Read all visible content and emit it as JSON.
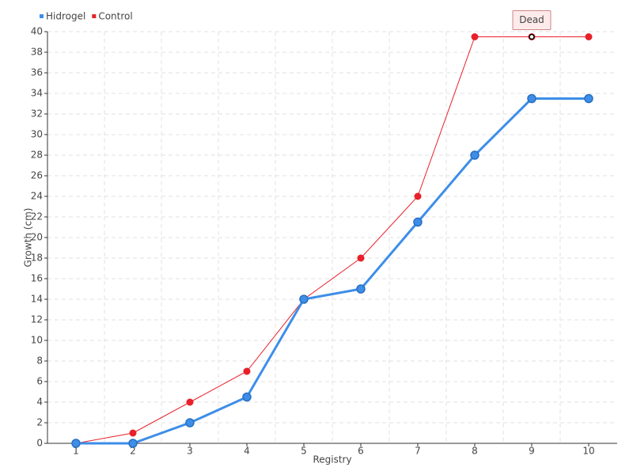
{
  "chart_data": {
    "type": "line",
    "x_label": "Registry",
    "y_label": "Growth (cm)",
    "categories": [
      "1",
      "2",
      "3",
      "4",
      "5",
      "6",
      "7",
      "8",
      "9",
      "10"
    ],
    "series": [
      {
        "name": "Hidrogel",
        "color": "#3d8ee8",
        "values": [
          0,
          0,
          2,
          4.5,
          14,
          15,
          21.5,
          28,
          33.5,
          33.5
        ]
      },
      {
        "name": "Control",
        "color": "#e8202a",
        "values": [
          0,
          1,
          4,
          7,
          14,
          18,
          24,
          39.5,
          39.5,
          39.5
        ]
      }
    ],
    "annotations": [
      {
        "label": "Dead",
        "series": "Control",
        "category": "9"
      }
    ],
    "ylim": [
      0,
      40
    ],
    "yticks": [
      0,
      2,
      4,
      6,
      8,
      10,
      12,
      14,
      16,
      18,
      20,
      22,
      24,
      26,
      28,
      30,
      32,
      34,
      36,
      38,
      40
    ],
    "grid": true,
    "legend": "top-left"
  }
}
